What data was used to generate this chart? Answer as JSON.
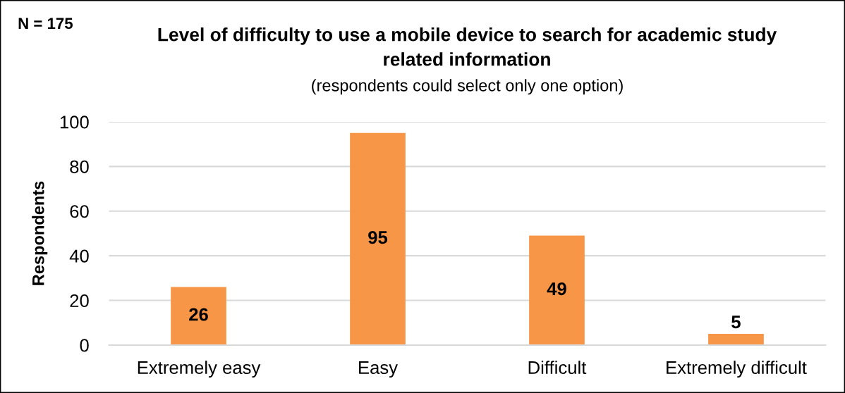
{
  "chart_data": {
    "type": "bar",
    "title": "Level of difficulty to use a mobile device to search for academic study related information",
    "subtitle": "(respondents could select only one option)",
    "ylabel": "Respondents",
    "annotations": [
      "N = 175"
    ],
    "categories": [
      "Extremely easy",
      "Easy",
      "Difficult",
      "Extremely difficult"
    ],
    "values": [
      26,
      95,
      49,
      5
    ],
    "color": "#f79646",
    "ylim": [
      0,
      100
    ],
    "yticks": [
      0,
      20,
      40,
      60,
      80,
      100
    ],
    "grid": "y",
    "data_labels": true
  }
}
